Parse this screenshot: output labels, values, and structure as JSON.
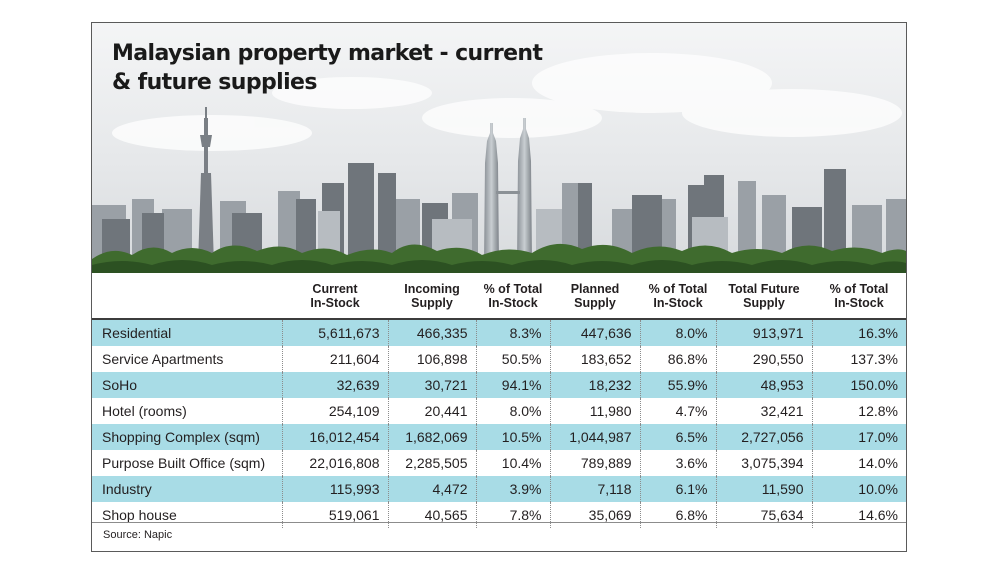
{
  "chart_data": {
    "type": "table",
    "title": "Malaysian property market - current & future supplies",
    "title_lines": [
      "Malaysian property market - current",
      "& future supplies"
    ],
    "columns": [
      "",
      "Current In-Stock",
      "Incoming Supply",
      "% of Total In-Stock",
      "Planned Supply",
      "% of Total In-Stock",
      "Total Future Supply",
      "% of Total In-Stock"
    ],
    "header_lines": [
      [
        ""
      ],
      [
        "Current",
        "In-Stock"
      ],
      [
        "Incoming",
        "Supply"
      ],
      [
        "% of Total",
        "In-Stock"
      ],
      [
        "Planned",
        "Supply"
      ],
      [
        "% of Total",
        "In-Stock"
      ],
      [
        "Total Future",
        "Supply"
      ],
      [
        "% of Total",
        "In-Stock"
      ]
    ],
    "rows": [
      [
        "Residential",
        "5,611,673",
        "466,335",
        "8.3%",
        "447,636",
        "8.0%",
        "913,971",
        "16.3%"
      ],
      [
        "Service Apartments",
        "211,604",
        "106,898",
        "50.5%",
        "183,652",
        "86.8%",
        "290,550",
        "137.3%"
      ],
      [
        "SoHo",
        "32,639",
        "30,721",
        "94.1%",
        "18,232",
        "55.9%",
        "48,953",
        "150.0%"
      ],
      [
        "Hotel (rooms)",
        "254,109",
        "20,441",
        "8.0%",
        "11,980",
        "4.7%",
        "32,421",
        "12.8%"
      ],
      [
        "Shopping Complex (sqm)",
        "16,012,454",
        "1,682,069",
        "10.5%",
        "1,044,987",
        "6.5%",
        "2,727,056",
        "17.0%"
      ],
      [
        "Purpose Built Office (sqm)",
        "22,016,808",
        "2,285,505",
        "10.4%",
        "789,889",
        "3.6%",
        "3,075,394",
        "14.0%"
      ],
      [
        "Industry",
        "115,993",
        "4,472",
        "3.9%",
        "7,118",
        "6.1%",
        "11,590",
        "10.0%"
      ],
      [
        "Shop house",
        "519,061",
        "40,565",
        "7.8%",
        "35,069",
        "6.8%",
        "75,634",
        "14.6%"
      ]
    ],
    "source": "Source: Napic",
    "row_stripe_color": "#a8dce6"
  }
}
